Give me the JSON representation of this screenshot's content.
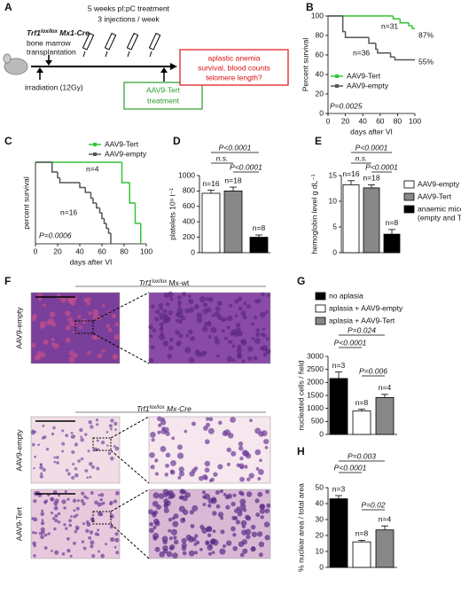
{
  "schematic": {
    "letter": "A",
    "treatment_line1": "5 weeks pI:pC treatment",
    "treatment_line2": "3 injections / week",
    "donor": {
      "gene": "Trf1",
      "sup": "lox/lox",
      "rest": " Mx1-Cre"
    },
    "bm_line1": "bone marrow",
    "bm_line2": "transplantation",
    "irradiation": "irradiation (12Gy)",
    "green_box": [
      "AAV9-Tert",
      "treatment"
    ],
    "red_box": [
      "aplastic anemia",
      "survival, blood counts",
      "telomere length?"
    ]
  },
  "survival_b": {
    "letter": "B",
    "ylabel": "Percent survival",
    "xlabel": "days after VI",
    "xlim": [
      0,
      100
    ],
    "ylim": [
      0,
      100
    ],
    "xticks": [
      0,
      20,
      40,
      60,
      80,
      100
    ],
    "yticks": [
      0,
      20,
      40,
      60,
      80,
      100
    ],
    "series": [
      {
        "name": "AAV9-Tert",
        "color": "#33c433",
        "x": [
          0,
          75,
          83,
          93,
          97,
          100
        ],
        "y": [
          100,
          97,
          93,
          90,
          87,
          87
        ]
      },
      {
        "name": "AAV9-empty",
        "color": "#555555",
        "x": [
          0,
          17,
          20,
          47,
          55,
          57,
          72,
          77,
          100
        ],
        "y": [
          100,
          84,
          78,
          72,
          66,
          62,
          58,
          55,
          55
        ]
      }
    ],
    "annotations": [
      "n=31",
      "n=36",
      "87%",
      "55%",
      "P=0.0025"
    ]
  },
  "survival_c": {
    "letter": "C",
    "ylabel": "percent survival",
    "xlabel": "days after VI",
    "xlim": [
      0,
      100
    ],
    "ylim": [
      0,
      100
    ],
    "xticks": [
      0,
      20,
      40,
      60,
      80,
      100
    ],
    "series": [
      {
        "name": "AAV9-Tert",
        "color": "#33c433",
        "x": [
          0,
          78,
          85,
          90,
          95
        ],
        "y": [
          100,
          75,
          50,
          25,
          0
        ]
      },
      {
        "name": "AAV9-empty",
        "color": "#555555",
        "x": [
          0,
          15,
          20,
          22,
          40,
          45,
          50,
          52,
          55,
          58,
          60,
          62,
          64,
          66,
          68
        ],
        "y": [
          100,
          88,
          81,
          75,
          69,
          63,
          56,
          50,
          44,
          38,
          31,
          25,
          19,
          13,
          0
        ]
      }
    ],
    "annotations": [
      "n=4",
      "n=16",
      "P=0.0006"
    ]
  },
  "platelets_d": {
    "letter": "D",
    "ylabel": "platelets 10⁹ l⁻¹",
    "ylim": [
      0,
      1000
    ],
    "yticks": [
      0,
      200,
      400,
      600,
      800,
      1000
    ],
    "values": [
      770,
      800,
      200
    ],
    "errors": [
      40,
      50,
      30
    ],
    "colors": [
      "#ffffff",
      "#888888",
      "#000000"
    ],
    "n_labels": [
      "n=16",
      "n=18",
      "n=8"
    ],
    "comparisons": [
      "P<0.0001",
      "n.s.",
      "P<0.0001"
    ]
  },
  "hemoglobin_e": {
    "letter": "E",
    "ylabel": "hemoglobin level g dL⁻¹",
    "ylim": [
      0,
      15
    ],
    "yticks": [
      0,
      5,
      10,
      15
    ],
    "values": [
      13.2,
      12.6,
      3.6
    ],
    "errors": [
      0.8,
      0.6,
      0.9
    ],
    "colors": [
      "#ffffff",
      "#888888",
      "#000000"
    ],
    "n_labels": [
      "n=16",
      "n=18",
      "n=8"
    ],
    "comparisons": [
      "P<0.0001",
      "n.s.",
      "P<0.0001"
    ],
    "legend": [
      {
        "name": "AAV9-empty",
        "color": "#ffffff"
      },
      {
        "name": "AAV9-Tert",
        "color": "#888888"
      },
      {
        "name": "anaemic mice",
        "note": "(empty and Tert)",
        "color": "#000000"
      }
    ]
  },
  "histology_f": {
    "letter": "F",
    "top_title": {
      "gene": "Trf1",
      "sup": "lox/lox",
      "rest": " Mx-wt"
    },
    "bottom_title": {
      "gene": "Trf1",
      "sup": "lox/lox",
      "rest": " Mx-Cre"
    },
    "row_labels": [
      "AAV9-empty",
      "AAV9-empty",
      "AAV9-Tert"
    ]
  },
  "nucleated_g": {
    "letter": "G",
    "ylabel": "nucleated cells / field",
    "ylim": [
      0,
      3000
    ],
    "yticks": [
      0,
      500,
      1000,
      1500,
      2000,
      2500,
      3000
    ],
    "values": [
      2150,
      900,
      1420
    ],
    "errors": [
      250,
      70,
      120
    ],
    "colors": [
      "#000000",
      "#ffffff",
      "#888888"
    ],
    "n_labels": [
      "n=3",
      "n=8",
      "n=4"
    ],
    "comparisons": [
      "P=0.024",
      "P<0.0001",
      "P=0.006"
    ],
    "legend": [
      {
        "name": "no aplasia",
        "color": "#000000"
      },
      {
        "name": "aplasia + AAV9-empty",
        "color": "#ffffff"
      },
      {
        "name": "aplasia + AAV9-Tert",
        "color": "#888888"
      }
    ]
  },
  "nuclear_area_h": {
    "letter": "H",
    "ylabel": "% nuclear area / total area",
    "ylim": [
      0,
      50
    ],
    "yticks": [
      0,
      10,
      20,
      30,
      40,
      50
    ],
    "values": [
      43,
      16,
      23.5
    ],
    "errors": [
      2,
      1,
      2.5
    ],
    "colors": [
      "#000000",
      "#ffffff",
      "#888888"
    ],
    "n_labels": [
      "n=3",
      "n=8",
      "n=4"
    ],
    "comparisons": [
      "P=0.003",
      "P<0.0001",
      "P=0.02"
    ]
  }
}
